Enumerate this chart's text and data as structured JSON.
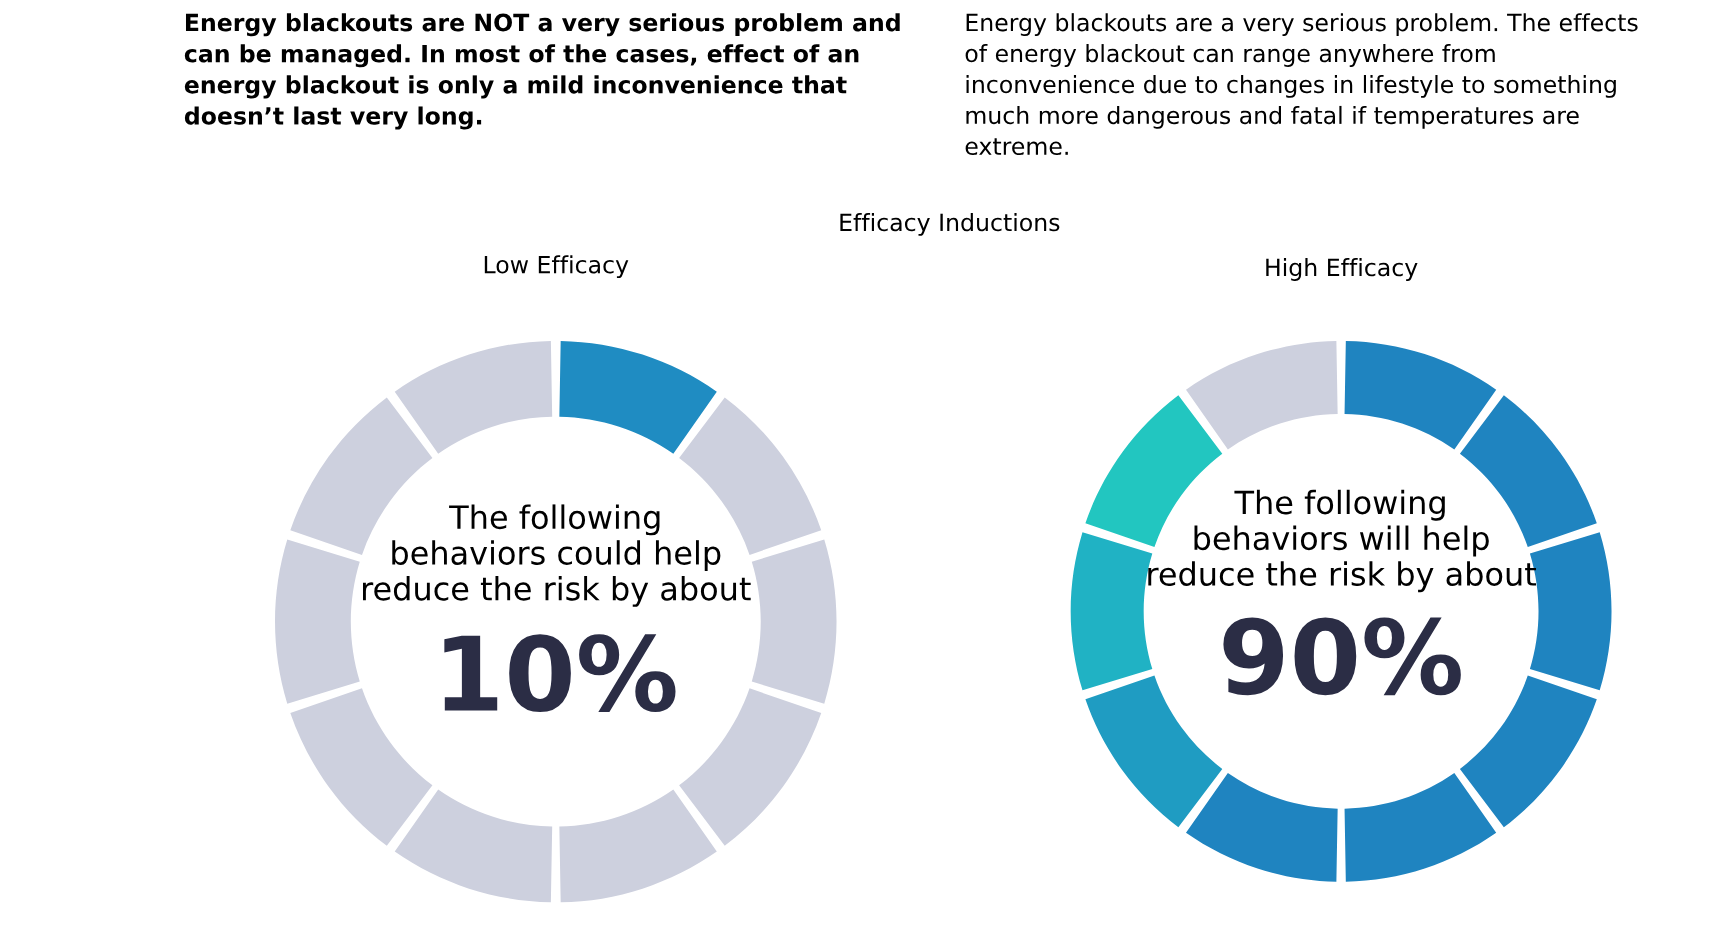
{
  "chart_data": [
    {
      "type": "other",
      "annotations": [
        "Energy blackouts are NOT a very serious problem and\ncan be managed. In most of the cases, effect of an\nenergy blackout is only a mild inconvenience that\ndoesn’t last very long.",
        "Energy blackouts are a very serious problem. The effects\nof energy blackout can range anywhere from\ninconvenience due to changes in lifestyle to something\nmuch more dangerous and fatal if temperatures are\nextreme.",
        "Efficacy Inductions"
      ]
    },
    {
      "type": "donut",
      "title": "Low Efficacy",
      "categories": [
        null,
        null,
        null,
        null,
        null,
        null,
        null,
        null,
        null,
        null
      ],
      "values": [
        10,
        10,
        10,
        10,
        10,
        10,
        10,
        10,
        10,
        10
      ],
      "colors": [
        "#1f8cc2",
        "#cdd0de",
        "#cdd0de",
        "#cdd0de",
        "#cdd0de",
        "#cdd0de",
        "#cdd0de",
        "#cdd0de",
        "#cdd0de",
        "#cdd0de"
      ],
      "annotations": [
        "The following\nbehaviors could help\nreduce the risk by about",
        "10%"
      ]
    },
    {
      "type": "donut",
      "title": "High Efficacy",
      "categories": [
        null,
        null,
        null,
        null,
        null,
        null,
        null,
        null,
        null,
        null
      ],
      "values": [
        10,
        10,
        10,
        10,
        10,
        10,
        10,
        10,
        10,
        10
      ],
      "colors": [
        "#1f84c0",
        "#1f84c0",
        "#1f84c0",
        "#1f84c0",
        "#1f84c0",
        "#1f84c0",
        "#1f9cc2",
        "#20b2c4",
        "#22c6c0",
        "#cdd0de"
      ],
      "annotations": [
        "The following\nbehaviors will help\nreduce the risk by about",
        "90%"
      ]
    }
  ]
}
